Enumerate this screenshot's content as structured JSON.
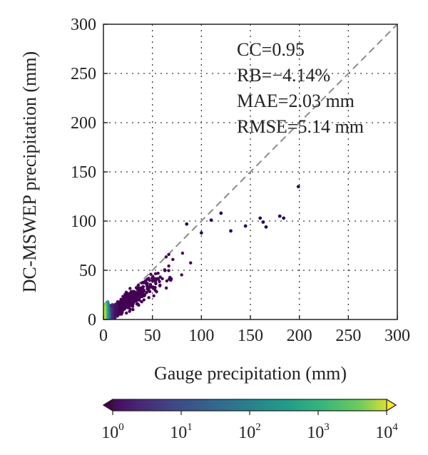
{
  "chart_data": {
    "type": "scatter",
    "title": "",
    "xlabel": "Gauge precipitation (mm)",
    "ylabel": "DC-MSWEP precipitation (mm)",
    "xlim": [
      0,
      300
    ],
    "ylim": [
      0,
      300
    ],
    "xticks": [
      "0",
      "50",
      "100",
      "150",
      "200",
      "250",
      "300"
    ],
    "yticks": [
      "0",
      "50",
      "100",
      "150",
      "200",
      "250",
      "300"
    ],
    "grid": "dotted",
    "reference_line": "1:1 dashed",
    "density_colored": true,
    "colormap": "viridis",
    "colorbar": {
      "orientation": "horizontal",
      "placement": "bottom",
      "extend": "both",
      "scale": "log",
      "range": [
        1,
        10000
      ],
      "ticks": [
        {
          "base": "10",
          "exp": "0"
        },
        {
          "base": "10",
          "exp": "1"
        },
        {
          "base": "10",
          "exp": "2"
        },
        {
          "base": "10",
          "exp": "3"
        },
        {
          "base": "10",
          "exp": "4"
        }
      ]
    },
    "stats": [
      "CC=0.95",
      "RB=−4.14%",
      "MAE=2.03 mm",
      "RMSE=5.14 mm"
    ],
    "stats_placement": "top-right",
    "outliers": [
      {
        "x": 199,
        "y": 135
      },
      {
        "x": 180,
        "y": 105
      },
      {
        "x": 184,
        "y": 103
      },
      {
        "x": 163,
        "y": 99
      },
      {
        "x": 166,
        "y": 94
      },
      {
        "x": 160,
        "y": 103
      },
      {
        "x": 145,
        "y": 95
      },
      {
        "x": 130,
        "y": 90
      },
      {
        "x": 120,
        "y": 108
      },
      {
        "x": 110,
        "y": 101
      },
      {
        "x": 85,
        "y": 97
      },
      {
        "x": 100,
        "y": 88
      }
    ],
    "point_cloud": {
      "count": 1500,
      "x_range": [
        0,
        150
      ],
      "mean_ratio": 0.75,
      "ratio_spread": 0.12,
      "note_values": "density bins"
    },
    "colors": {
      "low": "#2a0b55",
      "mid": "#21918c",
      "high": "#fde725",
      "refline": "#8c8c8c",
      "grid": "#3a3a3a"
    }
  }
}
